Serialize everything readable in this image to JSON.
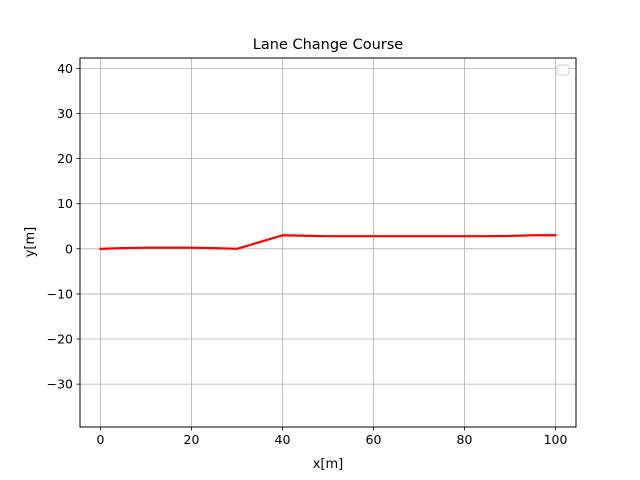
{
  "chart_data": {
    "type": "line",
    "title": "Lane Change Course",
    "xlabel": "x[m]",
    "ylabel": "y[m]",
    "xlim": [
      -4.5,
      104.5
    ],
    "ylim": [
      -39.5,
      42.3
    ],
    "xticks": [
      0,
      20,
      40,
      60,
      80,
      100
    ],
    "yticks": [
      -30,
      -20,
      -10,
      0,
      10,
      20,
      30,
      40
    ],
    "xtick_labels": [
      "0",
      "20",
      "40",
      "60",
      "80",
      "100"
    ],
    "ytick_labels": [
      "−30",
      "−20",
      "−10",
      "0",
      "10",
      "20",
      "30",
      "40"
    ],
    "grid": true,
    "legend": {
      "placement": "top-right",
      "entries": []
    },
    "series": [
      {
        "color": "#ff0000",
        "x": [
          0,
          5,
          10,
          15,
          20,
          25,
          30,
          35,
          40,
          45,
          50,
          55,
          60,
          65,
          70,
          75,
          80,
          85,
          90,
          95,
          100
        ],
        "y": [
          0,
          0.15,
          0.25,
          0.25,
          0.25,
          0.15,
          0,
          1.5,
          3.0,
          2.9,
          2.8,
          2.8,
          2.8,
          2.8,
          2.8,
          2.8,
          2.8,
          2.8,
          2.85,
          3.0,
          3.0
        ]
      }
    ]
  }
}
